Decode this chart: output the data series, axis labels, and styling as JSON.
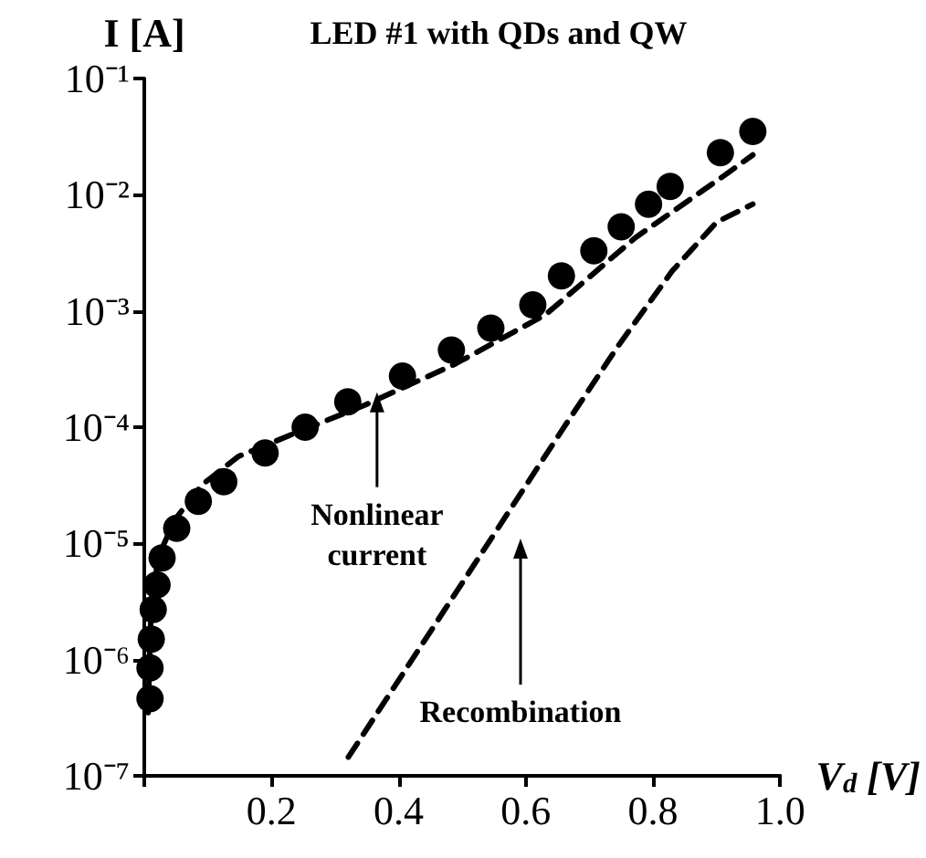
{
  "chart_data": {
    "type": "scatter",
    "title": "LED #1 with QDs and QW",
    "xlabel": "V$_{d}$ [V]",
    "ylabel": "I [A]",
    "log": "y",
    "xlim": [
      0,
      1.0
    ],
    "ylim": [
      1e-07,
      0.1
    ],
    "xticks": [
      {
        "value": 0,
        "label": null
      },
      0.2,
      0.4,
      0.6,
      0.8,
      {
        "value": 1.0,
        "label": "1.0"
      }
    ],
    "yticks": [
      {
        "value": 1e-07,
        "label": "10⁻⁷"
      },
      {
        "value": 1e-06,
        "label": "10⁻⁶"
      },
      {
        "value": 1e-05,
        "label": "10⁻⁵"
      },
      {
        "value": 0.0001,
        "label": "10⁻⁴"
      },
      {
        "value": 0.001,
        "label": "10⁻³"
      },
      {
        "value": 0.01,
        "label": "10⁻²"
      },
      {
        "value": 0.1,
        "label": "10⁻¹"
      }
    ],
    "grid": false,
    "series": [
      {
        "marker": "circle",
        "color": "#000000",
        "x": [
          0.009,
          0.009,
          0.011,
          0.014,
          0.02,
          0.028,
          0.051,
          0.085,
          0.125,
          0.19,
          0.253,
          0.32,
          0.406,
          0.483,
          0.545,
          0.611,
          0.656,
          0.707,
          0.75,
          0.793,
          0.827,
          0.906,
          0.957
        ],
        "values": [
          4.6e-07,
          8.5e-07,
          1.5e-06,
          2.7e-06,
          4.4e-06,
          7.5e-06,
          1.35e-05,
          2.3e-05,
          3.4e-05,
          6e-05,
          0.0001,
          0.000165,
          0.000275,
          0.00046,
          0.00071,
          0.00113,
          0.002,
          0.0033,
          0.0053,
          0.0083,
          0.0118,
          0.023,
          0.035
        ]
      },
      {
        "type": "line",
        "line_style": "dashed",
        "marker": "none",
        "color": "#000000",
        "x": [
          0.006,
          0.011,
          0.023,
          0.048,
          0.091,
          0.148,
          0.233,
          0.347,
          0.489,
          0.631,
          0.773,
          0.915,
          0.957
        ],
        "values": [
          3.5e-07,
          3.2e-06,
          7.9e-06,
          1.6e-05,
          3.2e-05,
          5.6e-05,
          8.7e-05,
          0.000155,
          0.00035,
          0.00093,
          0.0043,
          0.015,
          0.022
        ]
      },
      {
        "type": "line",
        "line_style": "dashed",
        "marker": "none",
        "color": "#000000",
        "x": [
          0.321,
          0.489,
          0.659,
          0.744,
          0.83,
          0.9,
          0.957
        ],
        "values": [
          1.45e-07,
          3.7e-06,
          9.8e-05,
          0.00049,
          0.0022,
          0.0058,
          0.0083
        ]
      }
    ],
    "annotations": [
      {
        "text": "Nonlinear\ncurrent",
        "x": 0.366,
        "y": 0.0002
      },
      "Recombination"
    ]
  }
}
